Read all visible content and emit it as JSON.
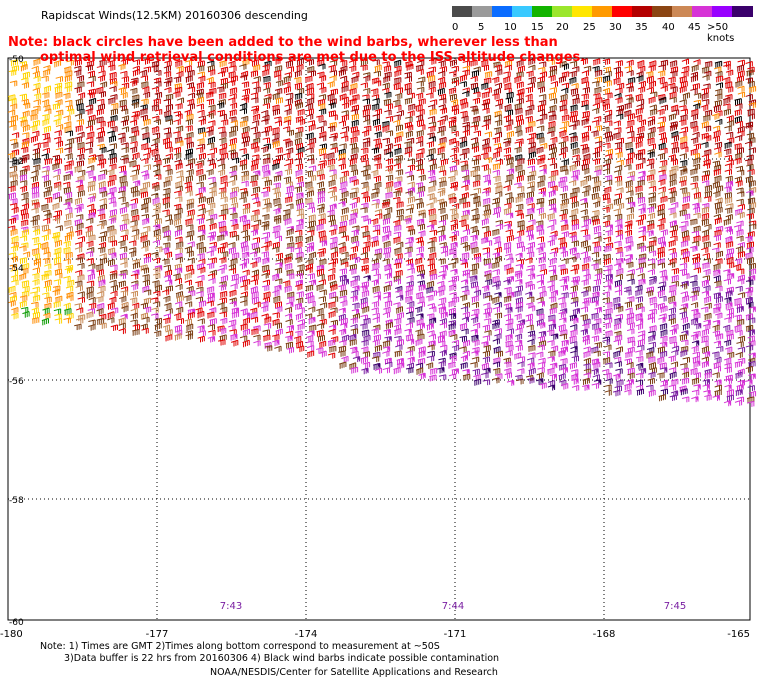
{
  "title": "Rapidscat Winds(12.5KM) 20160306 descending",
  "note_line1": "Note: black circles have been added to the wind barbs, wherever less than",
  "note_line2": "optimal wind retrieval conditions are met due to the ISS altitude changes.",
  "legend": {
    "colors": [
      "#4b4b4b",
      "#9a9a9a",
      "#0a6cff",
      "#39c9ff",
      "#12b400",
      "#9be62c",
      "#ffe600",
      "#ff9a00",
      "#ff0000",
      "#b40000",
      "#8b4513",
      "#cc8855",
      "#d633d6",
      "#9900ff",
      "#3a006b"
    ],
    "labels": [
      "0",
      "5",
      "10",
      "15",
      "20",
      "25",
      "30",
      "35",
      "40",
      "45",
      ">50 knots"
    ]
  },
  "axes": {
    "lat_labels": [
      "-50",
      "-52",
      "-54",
      "-56",
      "-58",
      "-60"
    ],
    "lon_labels": [
      "-180",
      "-177",
      "-174",
      "-171",
      "-168",
      "-165"
    ]
  },
  "times": [
    "7:43",
    "7:44",
    "7:45"
  ],
  "footer": {
    "line1": "Note: 1) Times are GMT 2)Times along bottom correspond to measurement at ~50S",
    "line2": "3)Data buffer is 22 hrs from 20160306 4) Black wind barbs indicate possible contamination",
    "line3": "NOAA/NESDIS/Center for Satellite Applications and Research"
  }
}
